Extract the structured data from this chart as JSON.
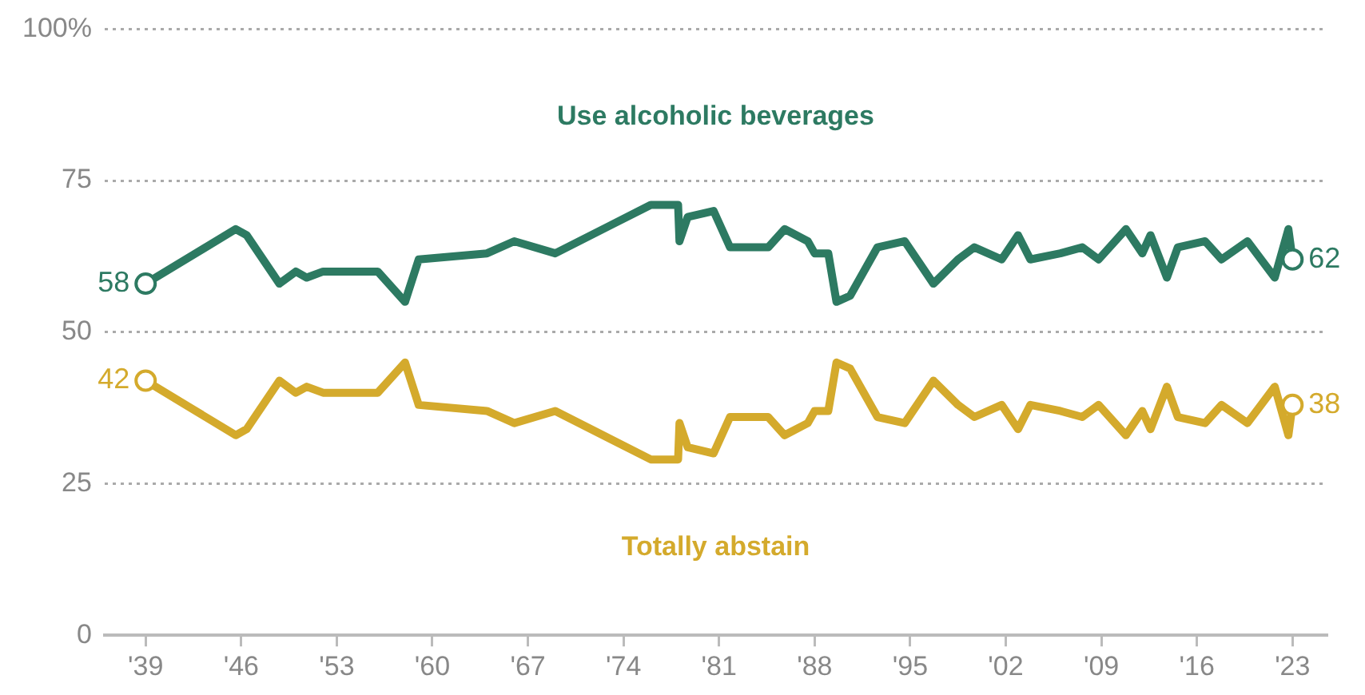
{
  "chart_data": {
    "type": "line",
    "x": [
      1939,
      1945.6,
      1946.4,
      1948.8,
      1950,
      1950.8,
      1952,
      1956,
      1958,
      1959,
      1964,
      1966,
      1969,
      1976,
      1978,
      1978.1,
      1978.7,
      1980.6,
      1981.8,
      1984.6,
      1985.8,
      1987.5,
      1988,
      1989,
      1989.6,
      1990.6,
      1992.6,
      1994.6,
      1996.7,
      1998.5,
      1999.7,
      2001.7,
      2002.9,
      2003.8,
      2006,
      2007.6,
      2008.8,
      2010.8,
      2012,
      2012.6,
      2013.8,
      2014.6,
      2016.6,
      2017.8,
      2019.7,
      2021.7,
      2022.7,
      2023
    ],
    "series": [
      {
        "name": "Use alcoholic beverages",
        "color": "#2d7a62",
        "values": [
          58,
          67,
          66,
          58,
          60,
          59,
          60,
          60,
          55,
          62,
          63,
          65,
          63,
          71,
          71,
          65,
          69,
          70,
          64,
          64,
          67,
          65,
          63,
          63,
          55,
          56,
          64,
          65,
          58,
          62,
          64,
          62,
          66,
          62,
          63,
          64,
          62,
          67,
          63,
          66,
          59,
          64,
          65,
          62,
          65,
          59,
          67,
          62
        ],
        "value_labels": [
          "58",
          null,
          null,
          null,
          null,
          null,
          null,
          null,
          null,
          null,
          null,
          null,
          null,
          null,
          null,
          null,
          null,
          null,
          null,
          null,
          null,
          null,
          null,
          null,
          null,
          null,
          null,
          null,
          null,
          null,
          null,
          null,
          null,
          null,
          null,
          null,
          null,
          null,
          null,
          null,
          null,
          null,
          null,
          null,
          null,
          null,
          null,
          "62"
        ]
      },
      {
        "name": "Totally abstain",
        "color": "#d4aa2c",
        "values": [
          42,
          33,
          34,
          42,
          40,
          41,
          40,
          40,
          45,
          38,
          37,
          35,
          37,
          29,
          29,
          35,
          31,
          30,
          36,
          36,
          33,
          35,
          37,
          37,
          45,
          44,
          36,
          35,
          42,
          38,
          36,
          38,
          34,
          38,
          37,
          36,
          38,
          33,
          37,
          34,
          41,
          36,
          35,
          38,
          35,
          41,
          33,
          38
        ],
        "value_labels": [
          "42",
          null,
          null,
          null,
          null,
          null,
          null,
          null,
          null,
          null,
          null,
          null,
          null,
          null,
          null,
          null,
          null,
          null,
          null,
          null,
          null,
          null,
          null,
          null,
          null,
          null,
          null,
          null,
          null,
          null,
          null,
          null,
          null,
          null,
          null,
          null,
          null,
          null,
          null,
          null,
          null,
          null,
          null,
          null,
          null,
          null,
          null,
          "38"
        ]
      }
    ],
    "xlim": [
      1936,
      2025.5
    ],
    "xticks": [
      {
        "value": 1939,
        "label": "'39"
      },
      {
        "value": 1946,
        "label": "'46"
      },
      {
        "value": 1953,
        "label": "'53"
      },
      {
        "value": 1960,
        "label": "'60"
      },
      {
        "value": 1967,
        "label": "'67"
      },
      {
        "value": 1974,
        "label": "'74"
      },
      {
        "value": 1981,
        "label": "'81"
      },
      {
        "value": 1988,
        "label": "'88"
      },
      {
        "value": 1995,
        "label": "'95"
      },
      {
        "value": 2002,
        "label": "'02"
      },
      {
        "value": 2009,
        "label": "'09"
      },
      {
        "value": 2016,
        "label": "'16"
      },
      {
        "value": 2023,
        "label": "'23"
      }
    ],
    "ylim": [
      0,
      100
    ],
    "yticks": [
      0,
      25,
      50,
      75,
      {
        "value": 100,
        "label": "100%"
      }
    ],
    "grid": "y",
    "legend": false,
    "line_style": "solid"
  }
}
